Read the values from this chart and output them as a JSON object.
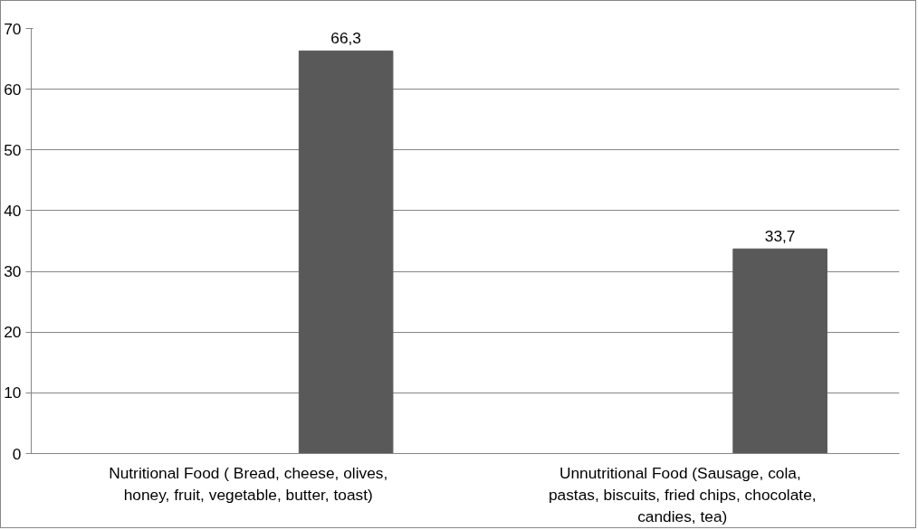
{
  "chart_data": {
    "type": "bar",
    "categories": [
      "Nutritional Food ( Bread, cheese, olives, honey, fruit, vegetable, butter, toast)",
      "Unnutritional  Food (Sausage, cola, pastas, biscuits, fried chips, chocolate, candies, tea)"
    ],
    "values": [
      66.3,
      33.7
    ],
    "value_labels": [
      "66,3",
      "33,7"
    ],
    "color": "#595959",
    "ylim": [
      0,
      70
    ],
    "yticks": [
      0,
      10,
      20,
      30,
      40,
      50,
      60,
      70
    ],
    "grid": "y"
  }
}
